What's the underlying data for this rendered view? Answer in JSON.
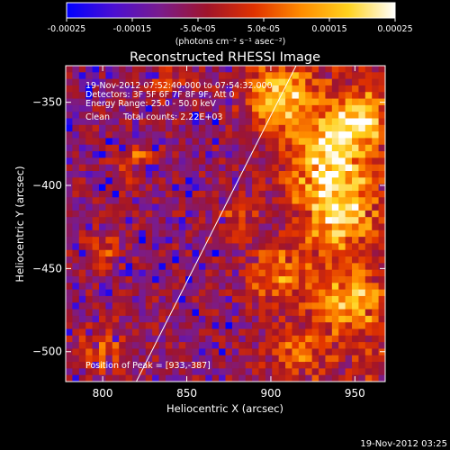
{
  "chart_data": {
    "type": "heatmap",
    "title": "Reconstructed RHESSI Image",
    "colorbar": {
      "colormap": "blue-purple-red-orange-yellow-white",
      "range": [
        -0.00025,
        0.00025
      ],
      "ticks": [
        -0.00025,
        -0.00015,
        -5e-05,
        5e-05,
        0.00015,
        0.00025
      ],
      "tick_labels": [
        "-0.00025",
        "-0.00015",
        "-5.0e-05",
        "5.0e-05",
        "0.00015",
        "0.00025"
      ],
      "unit_label": "(photons cm⁻² s⁻¹ asec⁻²)",
      "stops": [
        "#0000ff",
        "#4b0fd2",
        "#7a1c8c",
        "#a0142a",
        "#e03200",
        "#ff8c00",
        "#ffd21e",
        "#ffffff"
      ]
    },
    "xlabel": "Heliocentric X (arcsec)",
    "ylabel": "Heliocentric Y (arcsec)",
    "xlim": [
      778,
      968
    ],
    "ylim": [
      -518,
      -328
    ],
    "x_ticks": [
      800,
      850,
      900,
      950
    ],
    "y_ticks": [
      -350,
      -400,
      -450,
      -500
    ],
    "y_tick_labels": [
      "−350",
      "−400",
      "−450",
      "−500"
    ],
    "limb_line": {
      "from": [
        820,
        -518
      ],
      "to": [
        915,
        -328
      ]
    },
    "peak": [
      933,
      -387
    ],
    "annotations": [
      "19-Nov-2012 07:52:40.000 to 07:54:32.000",
      "Detectors: 3F 5F 6F 7F 8F 9F, Att 0",
      "Energy Range: 25.0 - 50.0 keV",
      "Clean     Total counts: 2.22E+03"
    ],
    "peak_label": "Position of Peak = [933,-387]",
    "footer_date": "19-Nov-2012 03:25"
  }
}
